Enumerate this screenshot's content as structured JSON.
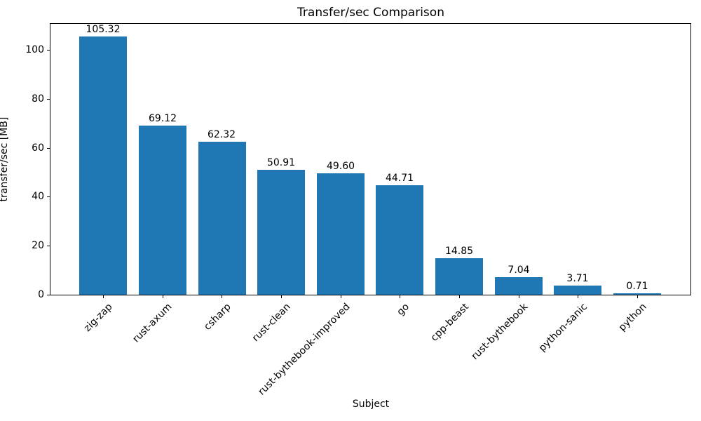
{
  "chart_data": {
    "type": "bar",
    "title": "Transfer/sec Comparison",
    "xlabel": "Subject",
    "ylabel": "transfer/sec [MB]",
    "categories": [
      "zig-zap",
      "rust-axum",
      "csharp",
      "rust-clean",
      "rust-bythebook-improved",
      "go",
      "cpp-beast",
      "rust-bythebook",
      "python-sanic",
      "python"
    ],
    "values": [
      105.32,
      69.12,
      62.32,
      50.91,
      49.6,
      44.71,
      14.85,
      7.04,
      3.71,
      0.71
    ],
    "value_labels": [
      "105.32",
      "69.12",
      "62.32",
      "50.91",
      "49.60",
      "44.71",
      "14.85",
      "7.04",
      "3.71",
      "0.71"
    ],
    "yticks": [
      0,
      20,
      40,
      60,
      80,
      100
    ],
    "ylim": [
      0,
      110.59
    ],
    "bar_color": "#1f77b4",
    "text_color": "#000000",
    "grid": false,
    "legend_position": "none",
    "xtick_rotation_deg": 45
  }
}
